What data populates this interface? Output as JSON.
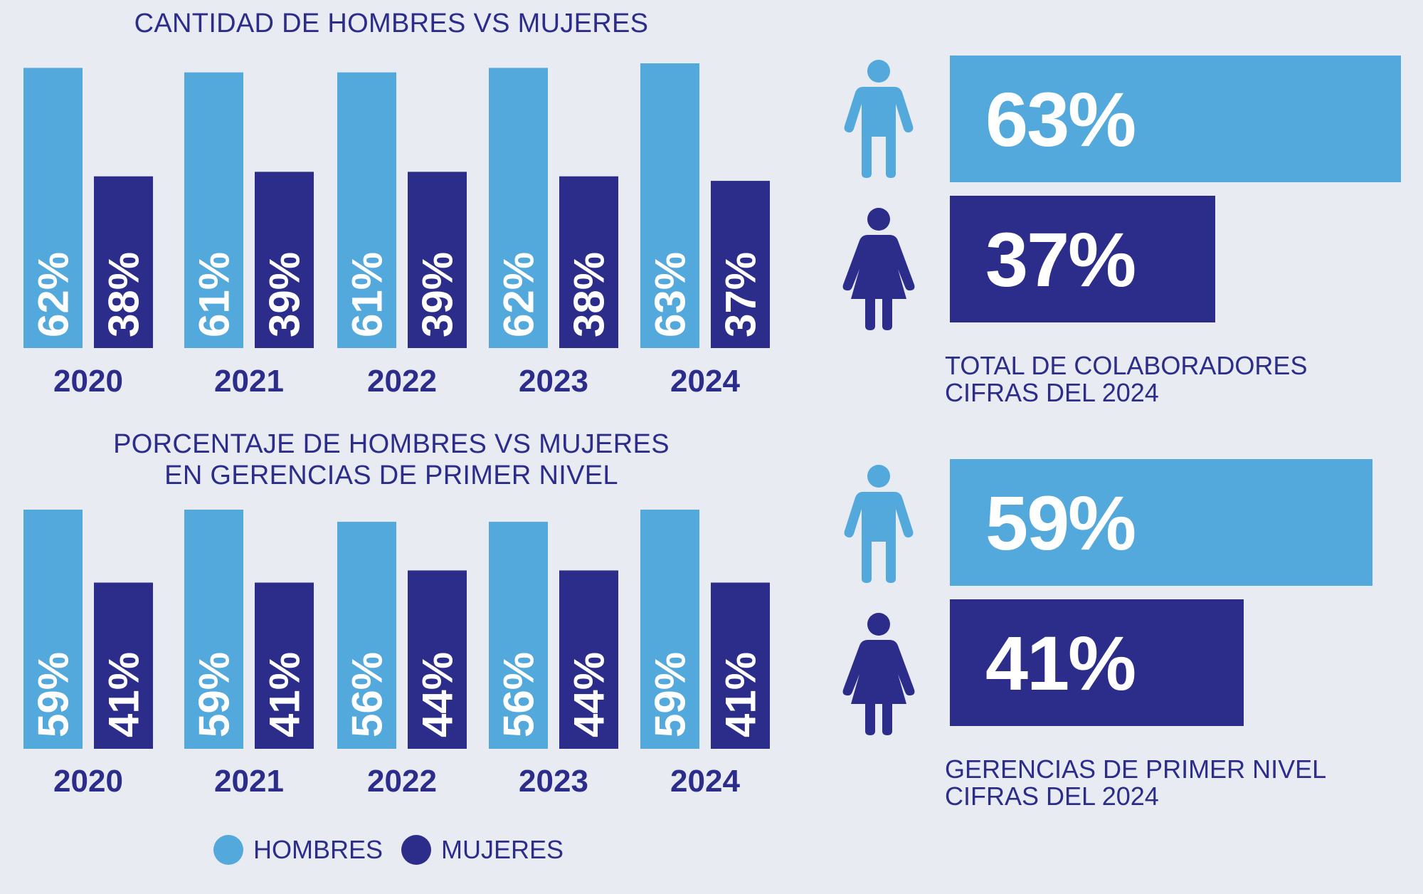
{
  "colors": {
    "men": "#53a8dc",
    "women": "#2c2d8a",
    "text": "#2c2d8a",
    "background": "#e8ebf1"
  },
  "chart_data": [
    {
      "type": "bar",
      "title": "CANTIDAD DE HOMBRES VS MUJERES",
      "categories": [
        "2020",
        "2021",
        "2022",
        "2023",
        "2024"
      ],
      "series": [
        {
          "name": "HOMBRES",
          "values": [
            62,
            61,
            61,
            62,
            63
          ],
          "labels": [
            "62%",
            "61%",
            "61%",
            "62%",
            "63%"
          ]
        },
        {
          "name": "MUJERES",
          "values": [
            38,
            39,
            39,
            38,
            37
          ],
          "labels": [
            "38%",
            "39%",
            "39%",
            "38%",
            "37%"
          ]
        }
      ],
      "legend": [
        "HOMBRES",
        "MUJERES"
      ]
    },
    {
      "type": "bar",
      "title": [
        "PORCENTAJE DE HOMBRES VS MUJERES",
        "EN GERENCIAS DE PRIMER NIVEL"
      ],
      "categories": [
        "2020",
        "2021",
        "2022",
        "2023",
        "2024"
      ],
      "series": [
        {
          "name": "HOMBRES",
          "values": [
            59,
            59,
            56,
            56,
            59
          ],
          "labels": [
            "59%",
            "59%",
            "56%",
            "56%",
            "59%"
          ]
        },
        {
          "name": "MUJERES",
          "values": [
            41,
            41,
            44,
            44,
            41
          ],
          "labels": [
            "41%",
            "41%",
            "44%",
            "44%",
            "41%"
          ]
        }
      ],
      "legend": [
        "HOMBRES",
        "MUJERES"
      ]
    }
  ],
  "legend": {
    "men_label": "HOMBRES",
    "women_label": "MUJERES"
  },
  "summary_total": {
    "men": {
      "value": 63,
      "label": "63%",
      "icon": "man-icon"
    },
    "women": {
      "value": 37,
      "label": "37%",
      "icon": "woman-icon"
    },
    "caption_line1": "TOTAL DE COLABORADORES",
    "caption_line2": "CIFRAS DEL 2024"
  },
  "summary_management": {
    "men": {
      "value": 59,
      "label": "59%",
      "icon": "man-icon"
    },
    "women": {
      "value": 41,
      "label": "41%",
      "icon": "woman-icon"
    },
    "caption_line1": "GERENCIAS DE PRIMER NIVEL",
    "caption_line2": "CIFRAS DEL 2024"
  }
}
